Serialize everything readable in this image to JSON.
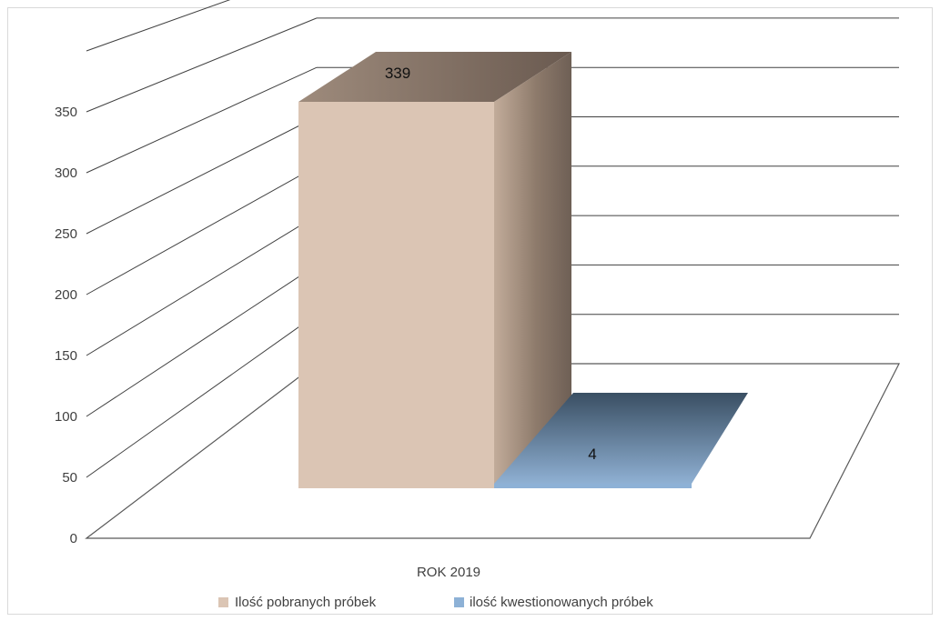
{
  "chart_data": {
    "type": "bar",
    "categories": [
      "ROK 2019"
    ],
    "series": [
      {
        "name": "Ilość pobranych próbek",
        "values": [
          339
        ],
        "color": "#dbc5b4"
      },
      {
        "name": "ilość kwestionowanych próbek",
        "values": [
          4
        ],
        "color": "#8db1d6"
      }
    ],
    "ylim": [
      0,
      350
    ],
    "y_ticks": [
      "0",
      "50",
      "100",
      "150",
      "200",
      "250",
      "300",
      "350"
    ],
    "data_labels": [
      "339",
      "4"
    ],
    "grid": true,
    "legend": "bottom",
    "style": "3d-column"
  }
}
